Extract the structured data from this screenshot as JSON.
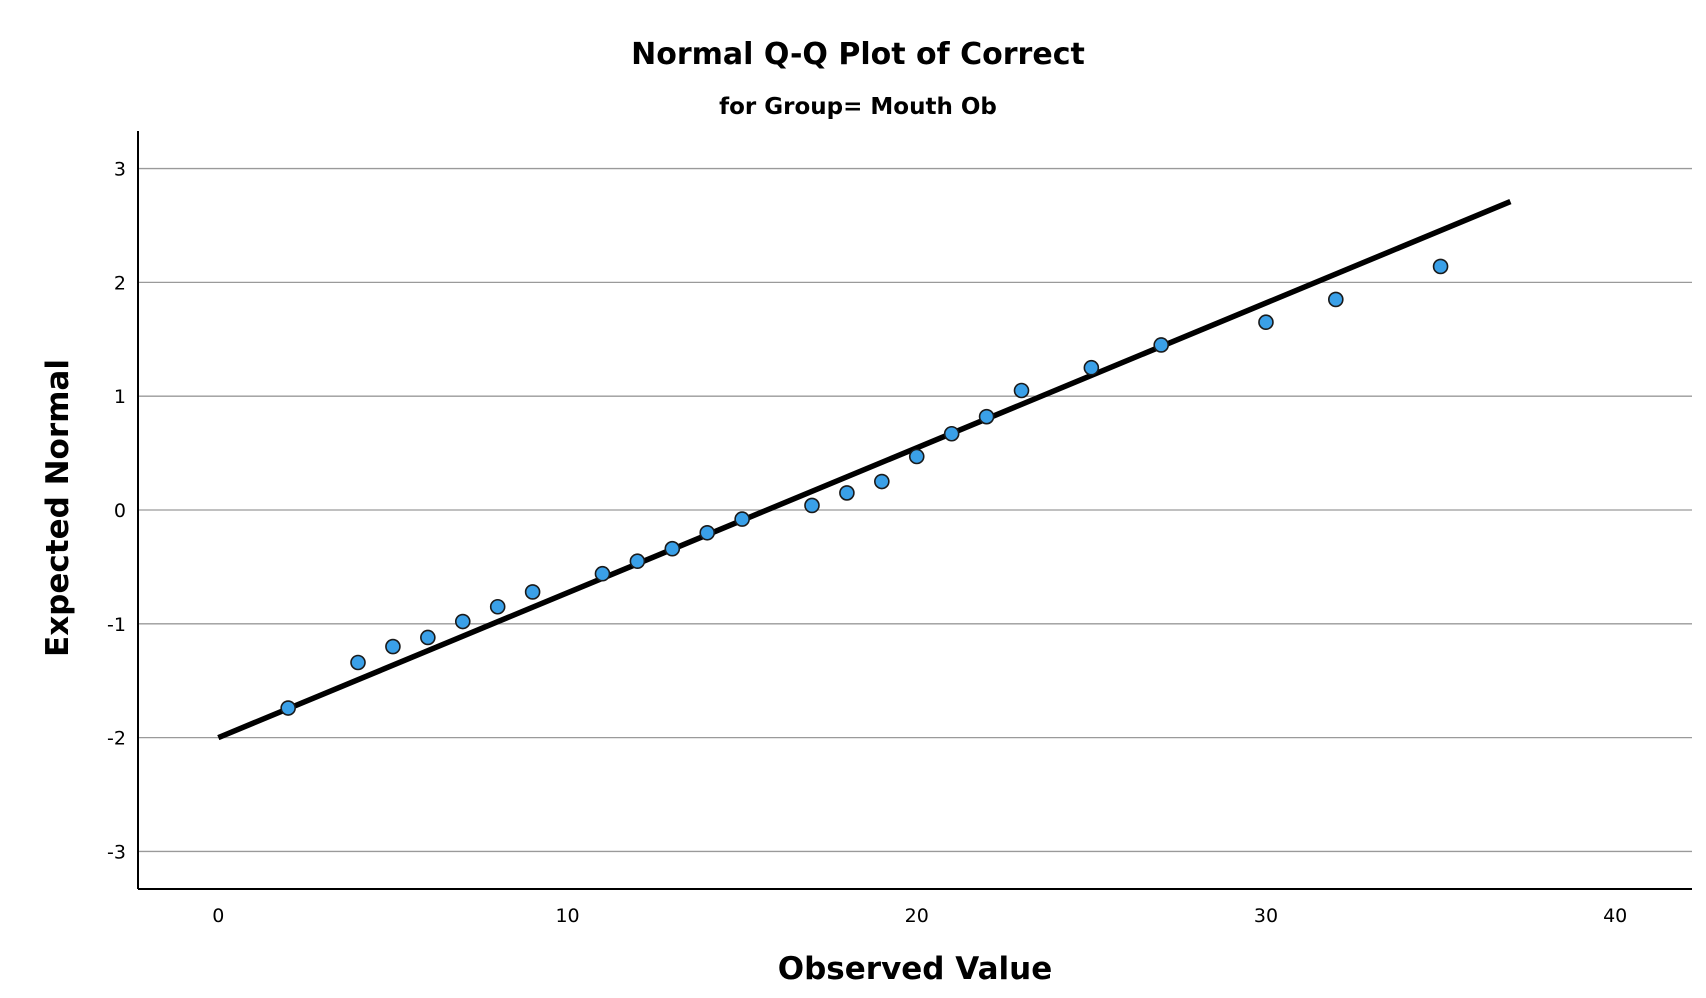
{
  "chart_data": {
    "type": "scatter",
    "title": "Normal Q-Q Plot of Correct",
    "subtitle": "for Group= Mouth Ob",
    "xlabel": "Observed Value",
    "ylabel": "Expected Normal",
    "xlim": [
      -2.3,
      42.2
    ],
    "ylim": [
      -3.33,
      3.33
    ],
    "x_ticks": [
      0,
      10,
      20,
      30,
      40
    ],
    "x_tick_labels": [
      "0",
      "10",
      "20",
      "30",
      "40"
    ],
    "y_ticks": [
      3,
      2,
      1,
      0,
      -1,
      -2,
      -3
    ],
    "y_tick_labels": [
      "3",
      "2",
      "1",
      "0",
      "-1",
      "-2",
      "-3"
    ],
    "grid": "horizontal",
    "legend": "none",
    "marker_color": "#3aa0e8",
    "marker_edge_color": "#1a1a1a",
    "line_color": "#000000",
    "series": [
      {
        "kind": "points",
        "points": [
          {
            "x": 2,
            "y": -1.74
          },
          {
            "x": 4,
            "y": -1.34
          },
          {
            "x": 5,
            "y": -1.2
          },
          {
            "x": 6,
            "y": -1.12
          },
          {
            "x": 7,
            "y": -0.98
          },
          {
            "x": 8,
            "y": -0.85
          },
          {
            "x": 9,
            "y": -0.72
          },
          {
            "x": 11,
            "y": -0.56
          },
          {
            "x": 12,
            "y": -0.45
          },
          {
            "x": 13,
            "y": -0.34
          },
          {
            "x": 14,
            "y": -0.2
          },
          {
            "x": 15,
            "y": -0.08
          },
          {
            "x": 17,
            "y": 0.04
          },
          {
            "x": 18,
            "y": 0.15
          },
          {
            "x": 19,
            "y": 0.25
          },
          {
            "x": 20,
            "y": 0.47
          },
          {
            "x": 21,
            "y": 0.67
          },
          {
            "x": 22,
            "y": 0.82
          },
          {
            "x": 23,
            "y": 1.05
          },
          {
            "x": 25,
            "y": 1.25
          },
          {
            "x": 27,
            "y": 1.45
          },
          {
            "x": 30,
            "y": 1.65
          },
          {
            "x": 32,
            "y": 1.85
          },
          {
            "x": 35,
            "y": 2.14
          }
        ]
      },
      {
        "kind": "reference-line",
        "points": [
          {
            "x": 0,
            "y": -2.0
          },
          {
            "x": 37,
            "y": 2.71
          }
        ]
      }
    ]
  }
}
